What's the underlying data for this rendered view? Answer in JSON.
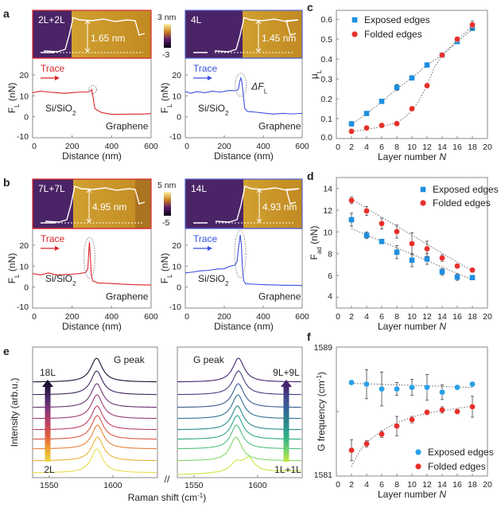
{
  "panel_letters": [
    "a",
    "b",
    "c",
    "d",
    "e",
    "f"
  ],
  "colors": {
    "trace_red": "#d9262b",
    "trace_blue": "#3a50e0",
    "exposed": "#1e8fe0",
    "folded": "#e8302a",
    "afm_low": "#4a2466",
    "afm_high": "#c9a032",
    "frame": "#8a8a8a",
    "error": "#555555",
    "fit": "#666666"
  },
  "colorbars": [
    {
      "max": "3 nm",
      "min": "-3"
    },
    {
      "max": "5 nm",
      "min": "-5"
    }
  ],
  "chart_data": [
    {
      "type": "line",
      "afm_label": "2L+2L",
      "step_height": "1.65 nm",
      "trace_label": "Trace",
      "trace_color": "#d9262b",
      "substrate_label": "Si/SiO",
      "substrate_sub": "2",
      "graphene_label": "Graphene",
      "annotation": "",
      "xlabel": "Distance (nm)",
      "ylabel": "F",
      "ylabel_sub": "L",
      "ylabel_unit": " (nN)",
      "xlim": [
        0,
        600
      ],
      "ylim": [
        -10,
        28
      ],
      "xticks": [
        0,
        200,
        400,
        600
      ],
      "yticks": [
        -10,
        0,
        10,
        20
      ],
      "peak": [
        300,
        13
      ],
      "series": [
        {
          "x": [
            0,
            40,
            80,
            120,
            160,
            200,
            240,
            280,
            295,
            300,
            305,
            315,
            330,
            350,
            400,
            450,
            500,
            550,
            600
          ],
          "y": [
            11.5,
            12.2,
            11.8,
            11.5,
            11.2,
            11.5,
            11.8,
            11.8,
            12.5,
            13,
            10,
            4,
            3,
            2,
            1.2,
            1.2,
            1.3,
            1.3,
            1.5
          ]
        }
      ]
    },
    {
      "type": "line",
      "afm_label": "4L",
      "step_height": "1.45 nm",
      "trace_label": "Trace",
      "trace_color": "#3a50e0",
      "substrate_label": "Si/SiO",
      "substrate_sub": "2",
      "graphene_label": "Graphene",
      "annotation": "ΔF",
      "annotation_sub": "L",
      "xlabel": "Distance (nm)",
      "ylabel": "F",
      "ylabel_sub": "L",
      "ylabel_unit": " (nN)",
      "xlim": [
        0,
        600
      ],
      "ylim": [
        -10,
        28
      ],
      "xticks": [
        0,
        200,
        400,
        600
      ],
      "yticks": [
        -10,
        0,
        10,
        20
      ],
      "peak": [
        285,
        18.5
      ],
      "series": [
        {
          "x": [
            0,
            30,
            60,
            100,
            140,
            180,
            220,
            260,
            272,
            280,
            285,
            290,
            296,
            305,
            320,
            350,
            400,
            450,
            500,
            550,
            600
          ],
          "y": [
            12,
            11.2,
            12,
            11.5,
            12.2,
            11.8,
            12.5,
            12.5,
            13,
            17,
            18.5,
            17,
            12,
            4,
            2.5,
            2.3,
            1.8,
            1.3,
            1.6,
            1.4,
            1.6
          ]
        }
      ]
    },
    {
      "type": "line",
      "afm_label": "7L+7L",
      "step_height": "4.95 nm",
      "trace_label": "Trace",
      "trace_color": "#d9262b",
      "substrate_label": "Si/SiO",
      "substrate_sub": "2",
      "graphene_label": "Graphene",
      "annotation": "",
      "xlabel": "Distance (nm)",
      "ylabel": "F",
      "ylabel_sub": "L",
      "ylabel_unit": " (nN)",
      "xlim": [
        0,
        600
      ],
      "ylim": [
        -10,
        28
      ],
      "xticks": [
        0,
        200,
        400,
        600
      ],
      "yticks": [
        -10,
        0,
        10,
        20
      ],
      "peak": [
        288,
        21.5
      ],
      "series": [
        {
          "x": [
            0,
            40,
            80,
            120,
            160,
            200,
            240,
            270,
            280,
            285,
            288,
            292,
            297,
            305,
            330,
            400,
            500,
            600
          ],
          "y": [
            6.5,
            5.8,
            6.8,
            5.8,
            6,
            6.2,
            6.5,
            7,
            9,
            18,
            21.5,
            15,
            6,
            3,
            2,
            1.7,
            1.2,
            1
          ]
        }
      ]
    },
    {
      "type": "line",
      "afm_label": "14L",
      "step_height": "4.93 nm",
      "trace_label": "Trace",
      "trace_color": "#3a50e0",
      "substrate_label": "Si/SiO",
      "substrate_sub": "2",
      "graphene_label": "Graphene",
      "annotation": "",
      "xlabel": "Distance (nm)",
      "ylabel": "F",
      "ylabel_sub": "L",
      "ylabel_unit": " (nN)",
      "xlim": [
        0,
        600
      ],
      "ylim": [
        -10,
        28
      ],
      "xticks": [
        0,
        200,
        400,
        600
      ],
      "yticks": [
        -10,
        0,
        10,
        20
      ],
      "peak": [
        282,
        25
      ],
      "series": [
        {
          "x": [
            0,
            40,
            80,
            120,
            160,
            200,
            230,
            255,
            265,
            275,
            282,
            288,
            294,
            300,
            310,
            350,
            400,
            500,
            600
          ],
          "y": [
            6.8,
            7.2,
            7.8,
            8,
            8.6,
            8.8,
            10,
            10.5,
            12,
            20,
            25,
            20,
            8,
            3,
            1.6,
            1.4,
            1.2,
            0.9,
            0.8
          ]
        }
      ]
    },
    {
      "type": "scatter",
      "xlabel": "Layer number ",
      "xlabel_italic": "N",
      "ylabel": "μ",
      "ylabel_sub": "L",
      "xlim": [
        0,
        20
      ],
      "ylim": [
        0,
        0.645
      ],
      "xticks": [
        0,
        2,
        4,
        6,
        8,
        10,
        12,
        14,
        16,
        18,
        20
      ],
      "yticks": [
        0,
        0.1,
        0.2,
        0.3,
        0.4,
        0.5,
        0.6
      ],
      "ytick_labels": [
        "0.0",
        "0.1",
        "0.2",
        "0.3",
        "0.4",
        "0.5",
        "0.6"
      ],
      "legend": "top-left",
      "series": [
        {
          "name": "Exposed edges",
          "marker": "square",
          "color": "#1e8fe0",
          "x": [
            2,
            4,
            6,
            8,
            10,
            12,
            14,
            16,
            18
          ],
          "y": [
            0.074,
            0.126,
            0.187,
            0.257,
            0.305,
            0.37,
            0.42,
            0.488,
            0.555
          ],
          "err": [
            0.006,
            0.006,
            0.006,
            0.015,
            0.006,
            0.006,
            0.006,
            0.008,
            0.012
          ],
          "fit": {
            "x": [
              2,
              4,
              6,
              8,
              10,
              12,
              14,
              16,
              18
            ],
            "y": [
              0.07,
              0.125,
              0.185,
              0.25,
              0.305,
              0.37,
              0.42,
              0.485,
              0.55
            ]
          }
        },
        {
          "name": "Folded edges",
          "marker": "circle",
          "color": "#e8302a",
          "x": [
            2,
            4,
            6,
            8,
            10,
            12,
            14,
            16,
            18
          ],
          "y": [
            0.036,
            0.053,
            0.066,
            0.075,
            0.15,
            0.266,
            0.42,
            0.5,
            0.572
          ],
          "err": [
            0.005,
            0.005,
            0.005,
            0.006,
            0.006,
            0.008,
            0.008,
            0.01,
            0.02
          ],
          "fit": {
            "x": [
              2,
              4,
              6,
              8,
              9,
              10,
              11,
              12,
              13,
              14,
              16,
              18
            ],
            "y": [
              0.035,
              0.045,
              0.06,
              0.08,
              0.105,
              0.14,
              0.195,
              0.27,
              0.36,
              0.42,
              0.495,
              0.565
            ]
          }
        }
      ]
    },
    {
      "type": "scatter",
      "xlabel": "Layer number ",
      "xlabel_italic": "N",
      "ylabel": "F",
      "ylabel_sub": "ad",
      "ylabel_unit": " (nN)",
      "xlim": [
        0,
        20
      ],
      "ylim": [
        3,
        15
      ],
      "xticks": [
        0,
        2,
        4,
        6,
        8,
        10,
        12,
        14,
        16,
        18,
        20
      ],
      "yticks": [
        4,
        6,
        8,
        10,
        12,
        14
      ],
      "ytick_labels": [
        "4",
        "6",
        "8",
        "10",
        "12",
        "14"
      ],
      "legend": "top-right",
      "series": [
        {
          "name": "Exposed edges",
          "marker": "square",
          "color": "#1e8fe0",
          "x": [
            2,
            4,
            6,
            8,
            10,
            12,
            14,
            16,
            18
          ],
          "y": [
            11.12,
            9.69,
            9.12,
            8.14,
            7.4,
            7.52,
            6.34,
            5.85,
            5.8
          ],
          "err": [
            0.6,
            0.3,
            0.2,
            0.6,
            0.6,
            0.5,
            0.3,
            0.3,
            0.2
          ],
          "fit": {
            "x": [
              2,
              18
            ],
            "y": [
              10.3,
              5.6
            ]
          }
        },
        {
          "name": "Folded edges",
          "marker": "circle",
          "color": "#e8302a",
          "x": [
            2,
            4,
            6,
            8,
            10,
            12,
            14,
            16,
            18
          ],
          "y": [
            12.9,
            11.93,
            10.77,
            10.03,
            8.92,
            8.45,
            7.6,
            6.86,
            6.49
          ],
          "err": [
            0.3,
            0.4,
            0.5,
            0.6,
            1.0,
            0.7,
            0.3,
            0.2,
            0.2
          ],
          "fit": {
            "x": [
              2,
              18
            ],
            "y": [
              13.0,
              6.4
            ]
          }
        }
      ]
    },
    {
      "type": "line",
      "xlabel": "Raman shift (cm",
      "xlabel_sup": "-1",
      "xlabel_end": ")",
      "ylabel": "Intensity (arb.u.)",
      "xlim": [
        1537,
        1635
      ],
      "xticks": [
        1550,
        1600
      ],
      "break_mark": "//",
      "left": {
        "peak_label": "G peak",
        "top_label": "18L",
        "bottom_label": "2L",
        "gradient": [
          "#e8dc4a",
          "#f0a030",
          "#e06040",
          "#c04060",
          "#8a3a78",
          "#4a2a6a",
          "#1a1030"
        ],
        "peaks": [
          [
            1587.5
          ],
          [
            1588
          ],
          [
            1588
          ],
          [
            1587.8
          ],
          [
            1587.6
          ],
          [
            1587.5
          ],
          [
            1587.4
          ],
          [
            1587.3
          ],
          [
            1587.2
          ]
        ]
      },
      "right": {
        "peak_label": "G peak",
        "top_label": "9L+9L",
        "bottom_label": "1L+1L",
        "gradient": [
          "#c8e640",
          "#6cd070",
          "#30b08a",
          "#2a8a8c",
          "#336a96",
          "#3f4a8c",
          "#46246e"
        ],
        "peaks": [
          [
            1583,
            1593
          ],
          [
            1583
          ],
          [
            1583.5
          ],
          [
            1584
          ],
          [
            1584.2
          ],
          [
            1584.5
          ],
          [
            1584.8
          ],
          [
            1585
          ],
          [
            1585
          ]
        ]
      }
    },
    {
      "type": "scatter",
      "xlabel": "Layer number ",
      "xlabel_italic": "N",
      "ylabel": "G frequency (cm",
      "ylabel_sup": "-1",
      "ylabel_end": ")",
      "xlim": [
        0,
        20
      ],
      "ylim": [
        1581,
        1589
      ],
      "xticks": [
        0,
        2,
        4,
        6,
        8,
        10,
        12,
        14,
        16,
        18,
        20
      ],
      "yticks": [
        1581,
        1585,
        1589
      ],
      "ytick_labels": [
        "1581",
        "",
        "1589"
      ],
      "legend": "bottom-right",
      "series": [
        {
          "name": "Exposed edges",
          "marker": "circle",
          "color": "#2aa0e8",
          "x": [
            2,
            4,
            6,
            8,
            10,
            12,
            14,
            16,
            18
          ],
          "y": [
            1586.8,
            1586.7,
            1586.4,
            1586.4,
            1586.5,
            1586.5,
            1586.2,
            1586.5,
            1586.7
          ],
          "err": [
            0.1,
            0.9,
            1.05,
            0.4,
            0.5,
            0.8,
            0.45,
            0.1,
            0.1
          ],
          "fit": {
            "x": [
              2,
              18
            ],
            "y": [
              1586.75,
              1586.5
            ]
          }
        },
        {
          "name": "Folded edges",
          "marker": "circle",
          "color": "#e8302a",
          "x": [
            2,
            4,
            6,
            8,
            10,
            12,
            14,
            16,
            18
          ],
          "y": [
            1582.6,
            1583.0,
            1583.6,
            1584.1,
            1584.5,
            1584.95,
            1585.1,
            1585.0,
            1585.3
          ],
          "err": [
            0.65,
            0.2,
            0.2,
            0.6,
            0.2,
            0.15,
            0.2,
            0.15,
            0.65
          ],
          "fit": {
            "x": [
              2,
              3,
              4,
              6,
              8,
              10,
              12,
              14,
              16,
              18
            ],
            "y": [
              1581.6,
              1582.5,
              1583.1,
              1583.8,
              1584.3,
              1584.65,
              1584.9,
              1585.05,
              1585.2,
              1585.35
            ]
          }
        }
      ]
    }
  ]
}
